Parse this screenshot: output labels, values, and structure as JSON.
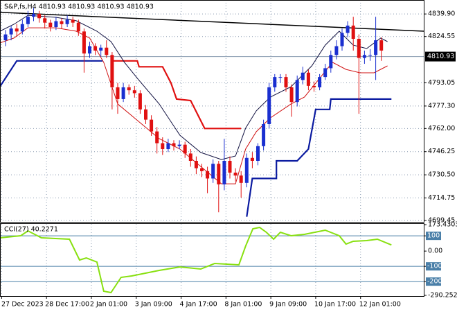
{
  "chart_data": {
    "type": "candlestick",
    "title": "S&P,fs,H4  4810.93 4810.93 4810.93 4810.93",
    "up_color": "#1a2fd0",
    "down_color": "#e01010",
    "grid": true,
    "ylim": [
      4698.5,
      4849.4
    ],
    "yticks": [
      {
        "value": 4839.9,
        "label": "4839.90"
      },
      4824.55,
      4793.05,
      {
        "value": 4777.3,
        "label": "4777.30"
      },
      {
        "value": 4762,
        "label": "4762.00"
      },
      4746.25,
      {
        "value": 4730.5,
        "label": "4730.50"
      },
      4714.75,
      4699.45
    ],
    "current_price": 4810.93,
    "xticks": [
      {
        "value": -0.7,
        "label": "27 Dec 2023"
      },
      {
        "value": 7.3,
        "label": "28 Dec 17:00"
      },
      {
        "value": 15.3,
        "label": "2 Jan 01:00"
      },
      {
        "value": 23.3,
        "label": "3 Jan 09:00"
      },
      {
        "value": 31.3,
        "label": "4 Jan 17:00"
      },
      {
        "value": 39.3,
        "label": "8 Jan 01:00"
      },
      {
        "value": 47.3,
        "label": "9 Jan 09:00"
      },
      {
        "value": 55.3,
        "label": "10 Jan 17:00"
      },
      {
        "value": 63.3,
        "label": "12 Jan 01:00"
      }
    ],
    "ohlc": [
      [
        4822,
        4829,
        4818,
        4826
      ],
      [
        4826,
        4832,
        4822,
        4830
      ],
      [
        4830,
        4833,
        4825,
        4828
      ],
      [
        4828,
        4836,
        4826,
        4833
      ],
      [
        4833,
        4842,
        4831,
        4838
      ],
      [
        4838,
        4844,
        4835,
        4840
      ],
      [
        4840,
        4842,
        4834,
        4837
      ],
      [
        4837,
        4839,
        4830,
        4834
      ],
      [
        4834,
        4836,
        4828,
        4831
      ],
      [
        4831,
        4838,
        4829,
        4835
      ],
      [
        4835,
        4837,
        4830,
        4833
      ],
      [
        4833,
        4839,
        4831,
        4836
      ],
      [
        4836,
        4838,
        4831,
        4834
      ],
      [
        4834,
        4836,
        4825,
        4828
      ],
      [
        4828,
        4830,
        4800,
        4813
      ],
      [
        4813,
        4821,
        4810,
        4818
      ],
      [
        4818,
        4820,
        4812,
        4815
      ],
      [
        4815,
        4819,
        4811,
        4817
      ],
      [
        4817,
        4822,
        4810,
        4812
      ],
      [
        4812,
        4814,
        4775,
        4790
      ],
      [
        4790,
        4793,
        4772,
        4782
      ],
      [
        4782,
        4793,
        4780,
        4790
      ],
      [
        4790,
        4792,
        4785,
        4788
      ],
      [
        4788,
        4791,
        4783,
        4786
      ],
      [
        4786,
        4788,
        4772,
        4775
      ],
      [
        4775,
        4778,
        4765,
        4768
      ],
      [
        4768,
        4771,
        4757,
        4760
      ],
      [
        4760,
        4763,
        4745,
        4752
      ],
      [
        4752,
        4756,
        4744,
        4748
      ],
      [
        4748,
        4755,
        4746,
        4752
      ],
      [
        4752,
        4754,
        4747,
        4750
      ],
      [
        4750,
        4754,
        4748,
        4751
      ],
      [
        4751,
        4753,
        4742,
        4745
      ],
      [
        4745,
        4748,
        4736,
        4740
      ],
      [
        4740,
        4743,
        4731,
        4735
      ],
      [
        4735,
        4738,
        4729,
        4733
      ],
      [
        4733,
        4736,
        4718,
        4728
      ],
      [
        4728,
        4741,
        4725,
        4738
      ],
      [
        4738,
        4740,
        4705,
        4724
      ],
      [
        4724,
        4755,
        4720,
        4740
      ],
      [
        4740,
        4743,
        4728,
        4732
      ],
      [
        4732,
        4735,
        4726,
        4730
      ],
      [
        4730,
        4733,
        4715,
        4725
      ],
      [
        4725,
        4745,
        4722,
        4742
      ],
      [
        4742,
        4746,
        4735,
        4740
      ],
      [
        4740,
        4752,
        4737,
        4750
      ],
      [
        4750,
        4768,
        4747,
        4765
      ],
      [
        4765,
        4793,
        4762,
        4790
      ],
      [
        4790,
        4799,
        4787,
        4797
      ],
      [
        4797,
        4799,
        4793,
        4797
      ],
      [
        4797,
        4799,
        4787,
        4790
      ],
      [
        4790,
        4792,
        4770,
        4780
      ],
      [
        4780,
        4798,
        4777,
        4795
      ],
      [
        4795,
        4804,
        4792,
        4800
      ],
      [
        4800,
        4802,
        4788,
        4791
      ],
      [
        4791,
        4794,
        4787,
        4790
      ],
      [
        4790,
        4799,
        4788,
        4797
      ],
      [
        4797,
        4806,
        4795,
        4803
      ],
      [
        4803,
        4815,
        4800,
        4812
      ],
      [
        4812,
        4822,
        4809,
        4818
      ],
      [
        4818,
        4830,
        4815,
        4827
      ],
      [
        4827,
        4835,
        4824,
        4832
      ],
      [
        4832,
        4838,
        4815,
        4823
      ],
      [
        4823,
        4826,
        4772,
        4810
      ],
      [
        4810,
        4815,
        4806,
        4812
      ],
      [
        4812,
        4816,
        4808,
        4812
      ],
      [
        4812,
        4838,
        4795,
        4822
      ],
      [
        4822,
        4824,
        4808,
        4815
      ]
    ],
    "lines": [
      {
        "color": "#000000",
        "width": 1.5,
        "points": [
          [
            -1,
            4841
          ],
          [
            74.6,
            4828.2
          ]
        ]
      },
      {
        "color": "#0a1aa0",
        "width": 2.2,
        "points": [
          [
            -1,
            4790.5
          ],
          [
            2,
            4808
          ],
          [
            17.3,
            4808
          ]
        ]
      },
      {
        "color": "#0a1aa0",
        "width": 2.2,
        "points": [
          [
            43,
            4702
          ],
          [
            44,
            4728
          ],
          [
            48.3,
            4728
          ],
          [
            48.3,
            4740
          ],
          [
            52,
            4740
          ],
          [
            54,
            4748
          ],
          [
            55.3,
            4775
          ],
          [
            57.8,
            4775
          ],
          [
            58,
            4782
          ],
          [
            68.8,
            4782
          ]
        ]
      },
      {
        "color": "#e01010",
        "width": 2.2,
        "points": [
          [
            18.8,
            4808
          ],
          [
            23.5,
            4808
          ],
          [
            23.8,
            4804
          ],
          [
            28,
            4804
          ],
          [
            29.5,
            4793
          ],
          [
            30.5,
            4782
          ],
          [
            33,
            4781
          ],
          [
            35.5,
            4762
          ],
          [
            42,
            4762
          ]
        ]
      },
      {
        "color": "#101040",
        "width": 1,
        "points": [
          [
            -1,
            4828.2
          ],
          [
            1.5,
            4832.9
          ],
          [
            4,
            4839
          ],
          [
            9,
            4837.6
          ],
          [
            12.6,
            4835.3
          ],
          [
            16.3,
            4828.2
          ],
          [
            18.8,
            4821.1
          ],
          [
            21.2,
            4807
          ],
          [
            23.7,
            4795.2
          ],
          [
            27.4,
            4778.7
          ],
          [
            31.1,
            4757.4
          ],
          [
            34.8,
            4745.7
          ],
          [
            38.5,
            4740.9
          ],
          [
            41,
            4743.3
          ],
          [
            42.8,
            4762.2
          ],
          [
            44.7,
            4774
          ],
          [
            47.2,
            4783.4
          ],
          [
            50.9,
            4790.4
          ],
          [
            54.6,
            4804.6
          ],
          [
            57,
            4818.7
          ],
          [
            59.5,
            4828.2
          ],
          [
            62,
            4818.7
          ],
          [
            64.4,
            4816.4
          ],
          [
            66.9,
            4823.5
          ],
          [
            68.1,
            4821.1
          ]
        ]
      },
      {
        "color": "#d01010",
        "width": 1,
        "points": [
          [
            -1,
            4820.2
          ],
          [
            1.5,
            4823.5
          ],
          [
            4,
            4830.5
          ],
          [
            9,
            4830.5
          ],
          [
            12.6,
            4828.2
          ],
          [
            15,
            4823.5
          ],
          [
            17.5,
            4807
          ],
          [
            20,
            4778.7
          ],
          [
            23.7,
            4766.9
          ],
          [
            27.4,
            4755.1
          ],
          [
            31.1,
            4748
          ],
          [
            34.8,
            4736.2
          ],
          [
            38.5,
            4724.4
          ],
          [
            41,
            4724.4
          ],
          [
            42.8,
            4748
          ],
          [
            44.7,
            4759.8
          ],
          [
            47.2,
            4769.2
          ],
          [
            50.9,
            4778.7
          ],
          [
            53.3,
            4783.4
          ],
          [
            55.8,
            4795.2
          ],
          [
            58.3,
            4807
          ],
          [
            60.7,
            4802.2
          ],
          [
            63.2,
            4799.9
          ],
          [
            65.7,
            4799.9
          ],
          [
            68.1,
            4804.6
          ]
        ]
      }
    ],
    "indicator": {
      "type": "line",
      "title": "CCI(27) 40.2271",
      "color": "#88e010",
      "ylim": [
        -290.2528,
        173.4303
      ],
      "yticks": [
        173.4303,
        100,
        {
          "value": 0,
          "label": "0.00"
        },
        -100,
        -200,
        -290.2528
      ],
      "levels": [
        100,
        -100,
        -200
      ],
      "level_color": "#4a7fa8",
      "points": [
        [
          -1,
          87.1
        ],
        [
          2.7,
          100.7
        ],
        [
          4,
          132.5
        ],
        [
          6.4,
          87.1
        ],
        [
          11.4,
          77.9
        ],
        [
          13.2,
          -58.4
        ],
        [
          14.4,
          -44.8
        ],
        [
          16.3,
          -72
        ],
        [
          17.5,
          -263
        ],
        [
          18.8,
          -272.1
        ],
        [
          20.6,
          -172.1
        ],
        [
          22.5,
          -163
        ],
        [
          27.4,
          -126.6
        ],
        [
          31.1,
          -103.9
        ],
        [
          34.8,
          -117.5
        ],
        [
          37.3,
          -81.1
        ],
        [
          41.6,
          -90.2
        ],
        [
          42.8,
          32.5
        ],
        [
          44.1,
          146.2
        ],
        [
          45.3,
          155.2
        ],
        [
          46.5,
          123.4
        ],
        [
          47.8,
          77.9
        ],
        [
          49,
          123.4
        ],
        [
          50.9,
          100.7
        ],
        [
          53.3,
          109.8
        ],
        [
          57,
          137.1
        ],
        [
          59.5,
          100.7
        ],
        [
          60.7,
          46.1
        ],
        [
          62,
          64.3
        ],
        [
          64.4,
          68.9
        ],
        [
          66.3,
          77.9
        ],
        [
          68.8,
          40.2271
        ]
      ]
    }
  }
}
